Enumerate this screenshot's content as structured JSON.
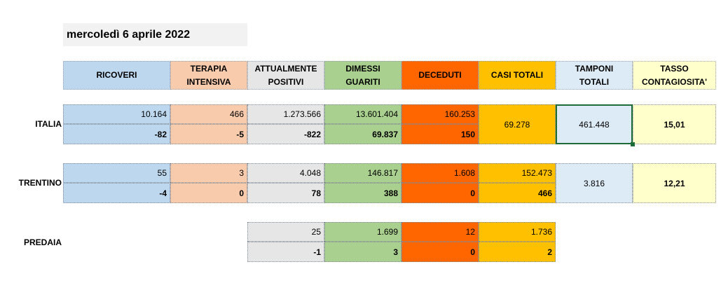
{
  "date_label": "mercoledì 6 aprile 2022",
  "colors": {
    "ricoveri": "#bdd7ee",
    "terapia": "#f8cbad",
    "positivi": "#e7e6e6",
    "dimessi": "#a9d08e",
    "deceduti": "#ff6600",
    "casi": "#ffc000",
    "tamponi": "#ddebf7",
    "tasso": "#ffffcc"
  },
  "headers": [
    {
      "key": "ricoveri",
      "line1": "RICOVERI",
      "line2": ""
    },
    {
      "key": "terapia",
      "line1": "TERAPIA",
      "line2": "INTENSIVA"
    },
    {
      "key": "positivi",
      "line1": "ATTUALMENTE",
      "line2": "POSITIVI"
    },
    {
      "key": "dimessi",
      "line1": "DIMESSI",
      "line2": "GUARITI"
    },
    {
      "key": "deceduti",
      "line1": "DECEDUTI",
      "line2": ""
    },
    {
      "key": "casi",
      "line1": "CASI TOTALI",
      "line2": ""
    },
    {
      "key": "tamponi",
      "line1": "TAMPONI",
      "line2": "TOTALI"
    },
    {
      "key": "tasso",
      "line1": "TASSO",
      "line2": "CONTAGIOSITA'"
    }
  ],
  "italia": {
    "label": "ITALIA",
    "ricoveri": [
      "10.164",
      "-82"
    ],
    "terapia": [
      "466",
      "-5"
    ],
    "positivi": [
      "1.273.566",
      "-822"
    ],
    "dimessi": [
      "13.601.404",
      "69.837"
    ],
    "deceduti": [
      "160.253",
      "150"
    ],
    "casi": "69.278",
    "tamponi": "461.448",
    "tasso": "15,01"
  },
  "trentino": {
    "label": "TRENTINO",
    "ricoveri": [
      "55",
      "-4"
    ],
    "terapia": [
      "3",
      "0"
    ],
    "positivi": [
      "4.048",
      "78"
    ],
    "dimessi": [
      "146.817",
      "388"
    ],
    "deceduti": [
      "1.608",
      "0"
    ],
    "casi": [
      "152.473",
      "466"
    ],
    "tamponi": "3.816",
    "tasso": "12,21"
  },
  "predaia": {
    "label": "PREDAIA",
    "positivi": [
      "25",
      "-1"
    ],
    "dimessi": [
      "1.699",
      "3"
    ],
    "deceduti": [
      "12",
      "0"
    ],
    "casi": [
      "1.736",
      "2"
    ]
  }
}
